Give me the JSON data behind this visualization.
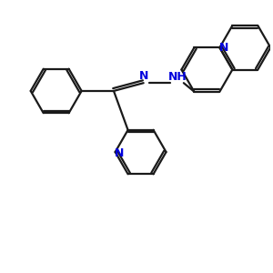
{
  "bg_color": "#ffffff",
  "bond_color": "#1a1a1a",
  "N_color": "#0000dd",
  "lw": 1.6,
  "figsize": [
    3.0,
    3.0
  ],
  "dpi": 100,
  "xlim": [
    0,
    10
  ],
  "ylim": [
    0,
    10
  ]
}
